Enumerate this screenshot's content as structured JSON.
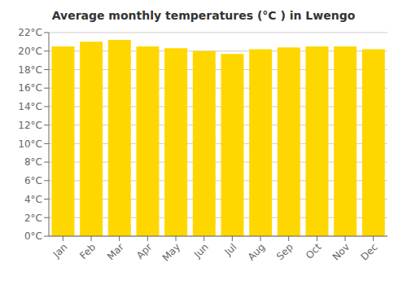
{
  "chart_data": {
    "type": "bar",
    "title": "Average monthly temperatures (°C ) in Lwengo",
    "categories": [
      "Jan",
      "Feb",
      "Mar",
      "Apr",
      "May",
      "Jun",
      "Jul",
      "Aug",
      "Sep",
      "Oct",
      "Nov",
      "Dec"
    ],
    "values": [
      20.5,
      21.0,
      21.2,
      20.5,
      20.3,
      20.0,
      19.7,
      20.2,
      20.4,
      20.5,
      20.5,
      20.2
    ],
    "color": "#FFD700",
    "ylim": [
      0,
      22
    ],
    "yticks": [
      {
        "value": 0,
        "label": "0°C"
      },
      {
        "value": 2,
        "label": "2°C"
      },
      {
        "value": 4,
        "label": "4°C"
      },
      {
        "value": 6,
        "label": "6°C"
      },
      {
        "value": 8,
        "label": "8°C"
      },
      {
        "value": 10,
        "label": "10°C"
      },
      {
        "value": 12,
        "label": "12°C"
      },
      {
        "value": 14,
        "label": "14°C"
      },
      {
        "value": 16,
        "label": "16°C"
      },
      {
        "value": 18,
        "label": "18°C"
      },
      {
        "value": 20,
        "label": "20°C"
      },
      {
        "value": 22,
        "label": "22°C"
      }
    ],
    "grid": true
  }
}
